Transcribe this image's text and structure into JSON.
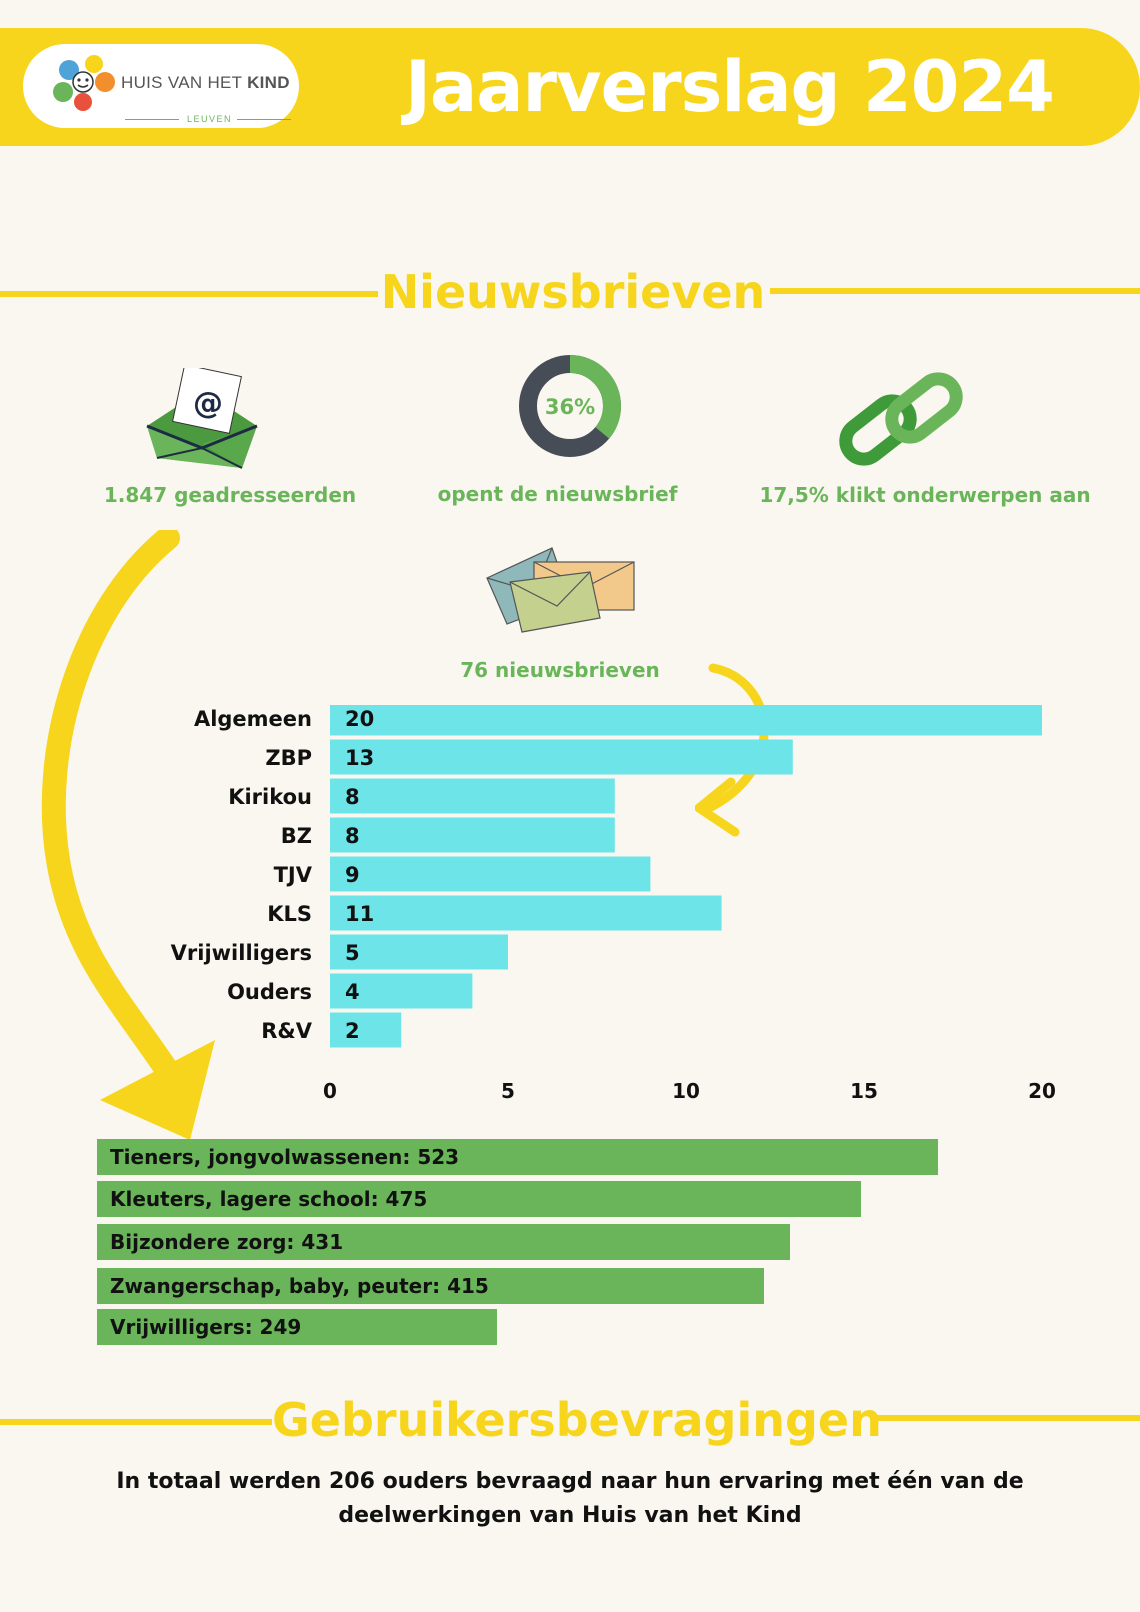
{
  "header": {
    "logo_text_light": "HUIS VAN HET ",
    "logo_text_bold": "KIND",
    "logo_sub": "LEUVEN",
    "title": "Jaarverslag 2024"
  },
  "newsletters": {
    "section_title": "Nieuwsbrieven",
    "addressees_label": "1.847 geadresseerden",
    "open_rate_value": 36,
    "open_rate_text": "36%",
    "open_rate_label": "opent de nieuwsbrief",
    "click_label": "17,5% klikt onderwerpen aan",
    "count_label": "76 nieuwsbrieven",
    "icons": {
      "mail": "open-envelope-at-icon",
      "donut": "donut-chart-icon",
      "link": "chain-link-icon",
      "envelopes": "envelopes-icon"
    },
    "colors": {
      "accent": "#f7d51d",
      "green": "#6ab55a",
      "cyan": "#6ce4e8",
      "dark": "#474d57"
    }
  },
  "chart_data": [
    {
      "type": "bar",
      "orientation": "horizontal",
      "categories": [
        "Algemeen",
        "ZBP",
        "Kirikou",
        "BZ",
        "TJV",
        "KLS",
        "Vrijwilligers",
        "Ouders",
        "R&V"
      ],
      "values": [
        20,
        13,
        8,
        8,
        9,
        11,
        5,
        4,
        2
      ],
      "xlim": [
        0,
        20
      ],
      "xticks": [
        0,
        5,
        10,
        15,
        20
      ],
      "grid": false,
      "color": "#6ce4e8"
    },
    {
      "type": "bar",
      "orientation": "horizontal",
      "categories": [
        "Tieners, jongvolwassenen",
        "Kleuters, lagere school",
        "Bijzondere zorg",
        "Zwangerschap, baby, peuter",
        "Vrijwilligers"
      ],
      "values": [
        523,
        475,
        431,
        415,
        249
      ],
      "labels": [
        "Tieners, jongvolwassenen: 523",
        "Kleuters, lagere school: 475",
        "Bijzondere zorg: 431",
        "Zwangerschap, baby, peuter: 415",
        "Vrijwilligers: 249"
      ],
      "grid": false,
      "color": "#6ab55a"
    }
  ],
  "survey": {
    "section_title": "Gebruikersbevragingen",
    "text": "In totaal werden 206 ouders bevraagd naar hun ervaring met één van de deelwerkingen van Huis van het Kind"
  }
}
